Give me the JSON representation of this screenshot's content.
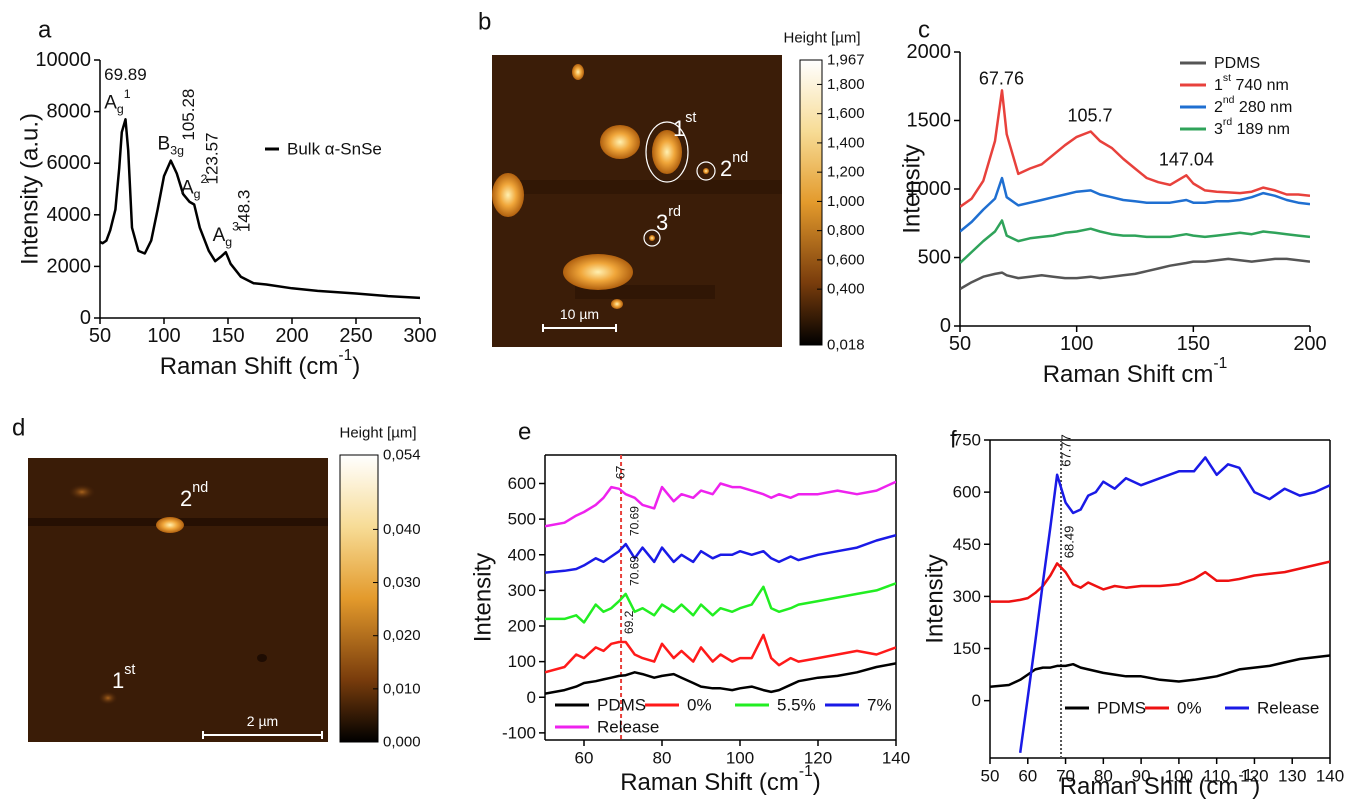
{
  "chart_data": [
    {
      "panel": "a",
      "type": "line",
      "x": [
        50,
        52,
        55,
        58,
        62,
        65,
        67,
        69.89,
        72,
        75,
        80,
        85,
        90,
        95,
        100,
        105.28,
        110,
        115,
        120,
        123.57,
        128,
        135,
        140,
        145,
        148.3,
        152,
        160,
        170,
        180,
        200,
        220,
        250,
        275,
        300
      ],
      "series": [
        {
          "name": "Bulk α-SnSe",
          "color": "#000000",
          "values": [
            2950,
            2900,
            3000,
            3400,
            4200,
            5800,
            7200,
            7700,
            6500,
            3500,
            2600,
            2500,
            3000,
            4200,
            5500,
            6100,
            5600,
            4800,
            4500,
            4400,
            3500,
            2600,
            2200,
            2400,
            2550,
            2100,
            1600,
            1350,
            1300,
            1150,
            1050,
            950,
            850,
            780
          ]
        }
      ],
      "xlim": [
        50,
        300
      ],
      "xticks": [
        50,
        100,
        150,
        200,
        250,
        300
      ],
      "ylim": [
        0,
        10000
      ],
      "yticks": [
        0,
        2000,
        4000,
        6000,
        8000,
        10000
      ],
      "xlabel": {
        "text": "Raman Shift (cm",
        "sup": "-1",
        "tail": ")"
      },
      "ylabel": "Intensity (a.u.)",
      "legend": "upper right",
      "peaks": [
        {
          "x": 69.89,
          "series": 0,
          "rotated": false,
          "mode": {
            "text": "A",
            "sub": "g",
            "sup": "1"
          }
        },
        {
          "x": 105.28,
          "series": 0,
          "rotated": true,
          "mode": {
            "text": "B",
            "sub": "3g"
          }
        },
        {
          "x": 123.57,
          "series": 0,
          "rotated": true,
          "mode": {
            "text": "A",
            "sub": "g",
            "sup": "2"
          }
        },
        {
          "x": 148.3,
          "series": 0,
          "rotated": true,
          "mode": {
            "text": "A",
            "sub": "g",
            "sup": "3"
          }
        }
      ]
    },
    {
      "panel": "b",
      "type": "image",
      "colorbar": {
        "label": "Height [µm]",
        "lim": [
          0.018,
          1.967
        ],
        "ticks": [
          {
            "value": 1.967,
            "label": "1,967"
          },
          {
            "value": 1.8,
            "label": "1,800"
          },
          {
            "value": 1.6,
            "label": "1,600"
          },
          {
            "value": 1.4,
            "label": "1,400"
          },
          {
            "value": 1.2,
            "label": "1,200"
          },
          {
            "value": 1.0,
            "label": "1,000"
          },
          {
            "value": 0.8,
            "label": "0,800"
          },
          {
            "value": 0.6,
            "label": "0,600"
          },
          {
            "value": 0.4,
            "label": "0,400"
          },
          {
            "value": 0.018,
            "label": "0,018"
          }
        ]
      },
      "scalebar": "10 µm",
      "labels": [
        {
          "text": "1",
          "sup": "st"
        },
        {
          "text": "2",
          "sup": "nd"
        },
        {
          "text": "3",
          "sup": "rd"
        }
      ]
    },
    {
      "panel": "c",
      "type": "line",
      "x": [
        50,
        55,
        60,
        65,
        68,
        70,
        75,
        80,
        85,
        90,
        95,
        100,
        106,
        110,
        115,
        120,
        125,
        130,
        135,
        140,
        147,
        150,
        155,
        160,
        165,
        170,
        175,
        180,
        185,
        190,
        195,
        200
      ],
      "series": [
        {
          "name": {
            "text": "PDMS"
          },
          "color": "#555555",
          "values": [
            270,
            320,
            360,
            380,
            390,
            370,
            350,
            360,
            370,
            360,
            350,
            350,
            360,
            350,
            360,
            370,
            380,
            400,
            420,
            440,
            460,
            470,
            470,
            480,
            490,
            480,
            470,
            480,
            490,
            490,
            480,
            470
          ]
        },
        {
          "name": {
            "text": "1",
            "sup": "st",
            "tail": "  740 nm"
          },
          "color": "#e8413c",
          "values": [
            870,
            930,
            1060,
            1350,
            1720,
            1400,
            1110,
            1150,
            1180,
            1250,
            1320,
            1380,
            1420,
            1350,
            1300,
            1220,
            1150,
            1080,
            1050,
            1030,
            1100,
            1040,
            990,
            980,
            975,
            970,
            980,
            1010,
            990,
            960,
            960,
            950
          ]
        },
        {
          "name": {
            "text": "2",
            "sup": "nd",
            "tail": " 280 nm"
          },
          "color": "#1f6fd1",
          "values": [
            690,
            760,
            850,
            930,
            1080,
            940,
            880,
            900,
            920,
            940,
            960,
            980,
            990,
            960,
            940,
            920,
            910,
            900,
            900,
            900,
            920,
            900,
            900,
            910,
            910,
            920,
            940,
            970,
            950,
            920,
            900,
            890
          ]
        },
        {
          "name": {
            "text": "3",
            "sup": "rd",
            "tail": " 189 nm"
          },
          "color": "#2fa35a",
          "values": [
            460,
            540,
            620,
            690,
            770,
            660,
            620,
            640,
            650,
            660,
            680,
            690,
            710,
            690,
            670,
            660,
            660,
            650,
            650,
            650,
            670,
            660,
            650,
            660,
            670,
            680,
            670,
            690,
            680,
            670,
            660,
            650
          ]
        }
      ],
      "xlim": [
        50,
        200
      ],
      "xticks": [
        50,
        100,
        150,
        200
      ],
      "ylim": [
        0,
        2000
      ],
      "yticks": [
        0,
        500,
        1000,
        1500,
        2000
      ],
      "xlabel": {
        "text": "Raman Shift cm",
        "sup": "-1"
      },
      "ylabel": "Intensity",
      "legend": "upper right",
      "peaks": [
        {
          "x": 67.76,
          "series": 1,
          "rotated": false
        },
        {
          "x": 105.7,
          "series": 1,
          "rotated": false
        },
        {
          "x": 147.04,
          "series": 1,
          "rotated": false
        }
      ]
    },
    {
      "panel": "d",
      "type": "image",
      "colorbar": {
        "label": "Height [µm]",
        "lim": [
          0,
          0.054
        ],
        "ticks": [
          {
            "value": 0.054,
            "label": "0,054"
          },
          {
            "value": 0.04,
            "label": "0,040"
          },
          {
            "value": 0.03,
            "label": "0,030"
          },
          {
            "value": 0.02,
            "label": "0,020"
          },
          {
            "value": 0.01,
            "label": "0,010"
          },
          {
            "value": 0,
            "label": "0,000"
          }
        ]
      },
      "scalebar": "2 µm",
      "labels": [
        {
          "text": "2",
          "sup": "nd"
        },
        {
          "text": "1",
          "sup": "st"
        }
      ]
    },
    {
      "panel": "e",
      "type": "line",
      "x": [
        50,
        55,
        58,
        60,
        63,
        65,
        67,
        69,
        70.7,
        73,
        75,
        78,
        80,
        83,
        85,
        88,
        90,
        93,
        95,
        98,
        100,
        103,
        106,
        108,
        110,
        113,
        115,
        120,
        125,
        130,
        135,
        140
      ],
      "series": [
        {
          "name": "PDMS",
          "color": "#000000",
          "values": [
            10,
            20,
            30,
            40,
            45,
            50,
            55,
            60,
            62,
            70,
            65,
            55,
            60,
            65,
            55,
            40,
            30,
            25,
            25,
            20,
            25,
            30,
            20,
            15,
            20,
            35,
            45,
            55,
            60,
            70,
            85,
            95
          ]
        },
        {
          "name": "0%",
          "color": "#ff1a1a",
          "values": [
            70,
            85,
            120,
            110,
            140,
            130,
            150,
            155,
            155,
            120,
            110,
            100,
            150,
            110,
            130,
            100,
            140,
            100,
            120,
            100,
            110,
            110,
            175,
            110,
            90,
            110,
            100,
            110,
            120,
            130,
            120,
            140
          ]
        },
        {
          "name": "5.5%",
          "color": "#22ee22",
          "values": [
            220,
            220,
            230,
            210,
            260,
            240,
            250,
            270,
            290,
            240,
            250,
            230,
            260,
            240,
            260,
            230,
            260,
            230,
            250,
            240,
            250,
            260,
            310,
            250,
            240,
            250,
            260,
            270,
            280,
            290,
            300,
            320
          ]
        },
        {
          "name": "7%",
          "color": "#1a1ae6",
          "values": [
            350,
            355,
            360,
            370,
            390,
            380,
            395,
            410,
            430,
            390,
            420,
            380,
            420,
            380,
            400,
            380,
            410,
            390,
            400,
            400,
            410,
            400,
            410,
            390,
            380,
            395,
            385,
            400,
            410,
            420,
            440,
            455
          ]
        },
        {
          "name": "Release",
          "color": "#ee22ee",
          "values": [
            480,
            490,
            510,
            520,
            540,
            560,
            590,
            585,
            570,
            560,
            540,
            530,
            590,
            550,
            570,
            560,
            580,
            570,
            600,
            590,
            590,
            580,
            570,
            560,
            570,
            560,
            570,
            570,
            580,
            570,
            580,
            605
          ]
        }
      ],
      "xlim": [
        50,
        140
      ],
      "xticks": [
        60,
        80,
        100,
        120,
        140
      ],
      "ylim": [
        -120,
        680
      ],
      "yticks": [
        -100,
        0,
        100,
        200,
        300,
        400,
        500,
        600
      ],
      "xlabel": {
        "text": "Raman Shift (cm",
        "sup": "-1",
        "tail": ")"
      },
      "ylabel": "Intensity",
      "legend": "lower left",
      "legend_columns": 4,
      "vline": {
        "x": 69.5,
        "color": "#e8413c",
        "dash": "4 3"
      },
      "peaks": [
        {
          "x": 67,
          "series": 4,
          "rotated": true
        },
        {
          "x": 70.69,
          "series": 3,
          "rotated": true
        },
        {
          "x": 70.69,
          "series": 2,
          "rotated": true
        },
        {
          "x": 69.2,
          "series": 1,
          "rotated": true
        }
      ]
    },
    {
      "panel": "f",
      "type": "line",
      "x": [
        50,
        55,
        58,
        60,
        62,
        64,
        66,
        67.77,
        70,
        72,
        74,
        76,
        78,
        80,
        83,
        86,
        90,
        95,
        100,
        104,
        107,
        110,
        113,
        116,
        120,
        124,
        128,
        132,
        136,
        140
      ],
      "series": [
        {
          "name": "PDMS",
          "color": "#000000",
          "values": [
            40,
            45,
            60,
            75,
            90,
            95,
            95,
            100,
            100,
            105,
            95,
            90,
            85,
            80,
            75,
            70,
            70,
            60,
            55,
            60,
            65,
            70,
            80,
            90,
            95,
            100,
            110,
            120,
            125,
            130
          ]
        },
        {
          "name": "0%",
          "color": "#ee1111",
          "values": [
            285,
            285,
            290,
            295,
            310,
            330,
            360,
            395,
            370,
            335,
            325,
            340,
            330,
            320,
            330,
            325,
            330,
            330,
            335,
            350,
            370,
            345,
            345,
            350,
            360,
            365,
            370,
            380,
            390,
            400
          ]
        },
        {
          "name": "Release",
          "color": "#1a1ae6",
          "values": [
            null,
            null,
            -150,
            10,
            170,
            340,
            500,
            650,
            570,
            540,
            550,
            590,
            600,
            630,
            610,
            640,
            620,
            640,
            660,
            660,
            700,
            650,
            680,
            670,
            600,
            580,
            610,
            590,
            600,
            620
          ]
        }
      ],
      "xlim": [
        50,
        140
      ],
      "xticks": [
        50,
        60,
        70,
        80,
        90,
        100,
        110,
        120,
        130,
        140
      ],
      "ylim": [
        -165,
        750
      ],
      "yticks": [
        0,
        150,
        300,
        450,
        600,
        750
      ],
      "xlabel": {
        "text": "Raman Shift (cm",
        "sup": "-1",
        "tail": ")"
      },
      "ylabel": "Intensity",
      "legend": "lower right",
      "legend_columns": 3,
      "vline": {
        "x": 68.8,
        "color": "#555555",
        "dash": "2 2"
      },
      "peaks": [
        {
          "x": 67.77,
          "series": 2,
          "rotated": true
        },
        {
          "x": 68.49,
          "series": 1,
          "rotated": true
        }
      ]
    }
  ]
}
